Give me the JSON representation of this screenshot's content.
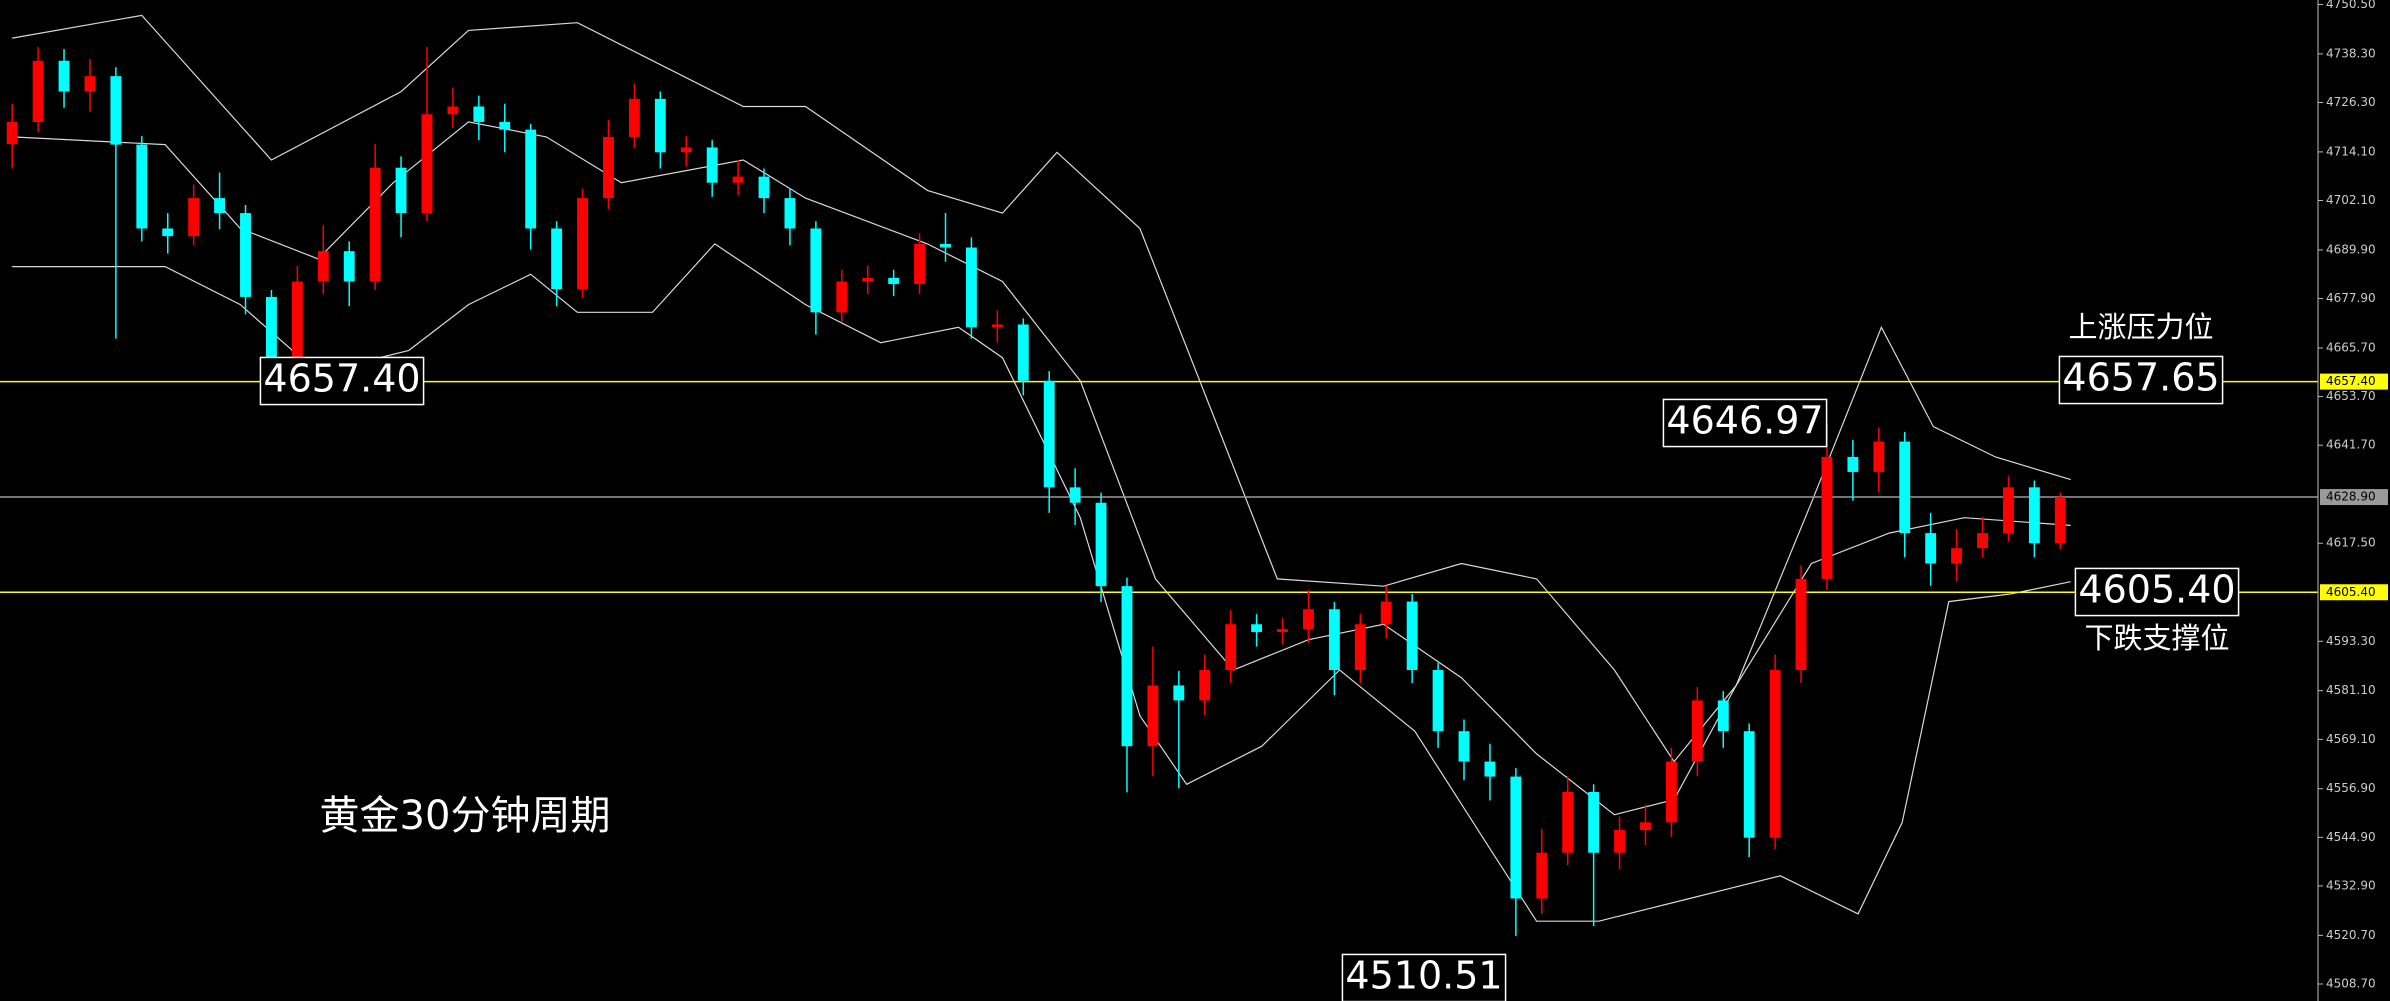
{
  "chart_data": {
    "type": "candlestick",
    "up_color": "#ff0000",
    "down_color": "#00ffff",
    "open": [
      4716.0,
      4721.5,
      4736.6,
      4729.0,
      4732.8,
      4715.9,
      4695.2,
      4693.3,
      4702.7,
      4699.0,
      4678.3,
      4663.3,
      4682.1,
      4689.6,
      4682.1,
      4710.2,
      4699.0,
      4723.4,
      4725.3,
      4721.5,
      4719.6,
      4695.2,
      4680.2,
      4702.7,
      4717.8,
      4727.2,
      4714.0,
      4715.2,
      4706.5,
      4708.0,
      4702.7,
      4695.2,
      4674.5,
      4682.1,
      4683.0,
      4681.5,
      4691.4,
      4690.5,
      4670.8,
      4671.5,
      4657.6,
      4631.3,
      4627.5,
      4606.9,
      4567.4,
      4582.4,
      4578.7,
      4586.2,
      4597.5,
      4595.6,
      4596.3,
      4601.2,
      4586.2,
      4597.5,
      4603.1,
      4586.2,
      4571.1,
      4563.6,
      4559.9,
      4529.8,
      4541.1,
      4556.1,
      4541.1,
      4546.7,
      4548.6,
      4563.6,
      4578.7,
      4571.1,
      4544.8,
      4586.2,
      4608.7,
      4638.8,
      4635.1,
      4642.6,
      4620.0,
      4612.5,
      4616.3,
      4620.0,
      4631.3,
      4617.5
    ],
    "high": [
      4726.0,
      4740.0,
      4739.5,
      4737.0,
      4735.0,
      4718.0,
      4699.0,
      4706.0,
      4709.0,
      4701.0,
      4680.0,
      4686.0,
      4696.0,
      4692.0,
      4716.0,
      4713.0,
      4740.0,
      4730.0,
      4728.0,
      4726.0,
      4721.0,
      4697.0,
      4705.0,
      4722.0,
      4731.0,
      4729.0,
      4718.0,
      4717.0,
      4712.0,
      4710.0,
      4705.0,
      4697.0,
      4685.0,
      4686.0,
      4685.0,
      4694.0,
      4699.0,
      4693.0,
      4675.0,
      4673.0,
      4660.0,
      4636.0,
      4630.0,
      4609.0,
      4592.0,
      4586.0,
      4590.0,
      4601.0,
      4600.0,
      4599.0,
      4606.0,
      4603.0,
      4600.0,
      4607.0,
      4605.0,
      4588.0,
      4574.0,
      4568.0,
      4562.0,
      4547.0,
      4560.0,
      4558.0,
      4550.0,
      4553.0,
      4567.0,
      4582.0,
      4581.0,
      4573.0,
      4590.0,
      4612.0,
      4646.97,
      4643.0,
      4646.0,
      4645.0,
      4625.0,
      4621.0,
      4624.0,
      4634.0,
      4633.0,
      4630.0
    ],
    "low": [
      4710.0,
      4719.0,
      4725.0,
      4724.0,
      4668.0,
      4692.0,
      4689.0,
      4691.0,
      4695.0,
      4674.0,
      4657.4,
      4661.0,
      4679.0,
      4676.0,
      4680.0,
      4693.0,
      4697.0,
      4720.0,
      4717.0,
      4714.0,
      4690.0,
      4676.0,
      4678.0,
      4700.0,
      4715.0,
      4710.0,
      4710.5,
      4703.0,
      4703.5,
      4699.0,
      4691.0,
      4669.0,
      4672.0,
      4679.0,
      4678.5,
      4679.0,
      4687.0,
      4668.0,
      4667.0,
      4654.0,
      4625.0,
      4622.0,
      4603.0,
      4556.0,
      4560.0,
      4557.0,
      4575.0,
      4583.0,
      4592.0,
      4592.5,
      4593.0,
      4580.0,
      4583.0,
      4594.0,
      4583.0,
      4567.0,
      4559.0,
      4554.0,
      4520.5,
      4526.0,
      4538.0,
      4523.0,
      4537.0,
      4543.0,
      4545.0,
      4560.0,
      4567.0,
      4540.0,
      4542.0,
      4583.0,
      4606.0,
      4628.0,
      4630.0,
      4614.0,
      4607.0,
      4608.0,
      4614.0,
      4618.0,
      4614.0,
      4616.0
    ],
    "close": [
      4721.5,
      4736.6,
      4729.0,
      4732.8,
      4715.9,
      4695.2,
      4693.3,
      4702.7,
      4699.0,
      4678.3,
      4663.3,
      4682.1,
      4689.6,
      4682.1,
      4710.2,
      4699.0,
      4723.4,
      4725.3,
      4721.5,
      4719.6,
      4695.2,
      4680.2,
      4702.7,
      4717.8,
      4727.2,
      4714.0,
      4715.2,
      4706.5,
      4708.0,
      4702.7,
      4695.2,
      4674.5,
      4682.1,
      4683.0,
      4681.5,
      4691.4,
      4690.5,
      4670.8,
      4671.5,
      4657.6,
      4631.3,
      4627.5,
      4606.9,
      4567.4,
      4582.4,
      4578.7,
      4586.2,
      4597.5,
      4595.6,
      4596.3,
      4601.2,
      4586.2,
      4597.5,
      4603.1,
      4586.2,
      4571.1,
      4563.6,
      4559.9,
      4529.8,
      4541.1,
      4556.1,
      4541.1,
      4546.7,
      4548.6,
      4563.6,
      4578.7,
      4571.1,
      4544.8,
      4586.2,
      4608.7,
      4638.8,
      4635.1,
      4642.6,
      4620.0,
      4612.5,
      4616.3,
      4620.0,
      4631.3,
      4617.5,
      4628.9
    ],
    "bands": [
      {
        "color": "#d8d8d8",
        "x": [
          0,
          5,
          10,
          15,
          17.6,
          21.8,
          28.2,
          30.6,
          35.3,
          38.2,
          40.3,
          43.5,
          46.5,
          48.8,
          52.9,
          55.9,
          58.8,
          61.8,
          64.1,
          66.5,
          69.4,
          72.1,
          74.1,
          76.5,
          79.4
        ],
        "values": [
          4742.2,
          4747.8,
          4712.1,
          4729.0,
          4744.1,
          4746.0,
          4725.3,
          4725.3,
          4704.6,
          4699.0,
          4714.0,
          4695.2,
          4646.3,
          4608.7,
          4606.9,
          4612.5,
          4608.7,
          4586.2,
          4563.6,
          4582.4,
          4627.5,
          4670.8,
          4646.3,
          4638.8,
          4633.2
        ]
      },
      {
        "color": "#d8d8d8",
        "x": [
          0,
          5.9,
          8.8,
          11.8,
          14.7,
          17.6,
          20.6,
          23.5,
          28.2,
          30.6,
          35.3,
          38.2,
          41.2,
          44.1,
          47.1,
          50,
          52.9,
          55.9,
          58.8,
          61.8,
          64.1,
          66.5,
          69.4,
          72.4,
          75.3,
          79.4
        ],
        "values": [
          4717.8,
          4715.9,
          4695.2,
          4687.7,
          4706.5,
          4721.5,
          4717.8,
          4706.5,
          4712.1,
          4702.7,
          4691.4,
          4682.1,
          4657.6,
          4608.7,
          4586.2,
          4593.7,
          4597.5,
          4584.3,
          4565.5,
          4550.5,
          4554.2,
          4582.4,
          4612.5,
          4620.0,
          4623.8,
          4621.9
        ]
      },
      {
        "color": "#d8d8d8",
        "x": [
          0,
          5.9,
          8.8,
          11.8,
          15.3,
          17.6,
          20,
          21.8,
          24.7,
          27.1,
          30.6,
          33.5,
          36.5,
          38.2,
          41.2,
          43.5,
          45.3,
          48.2,
          51.2,
          54.1,
          57.1,
          58.8,
          61.2,
          64.7,
          68.2,
          71.2,
          72.9,
          74.7,
          77.1,
          79.4
        ],
        "values": [
          4685.8,
          4685.8,
          4676.4,
          4659.5,
          4665.1,
          4676.4,
          4683.9,
          4674.5,
          4674.5,
          4691.4,
          4676.4,
          4667.0,
          4670.8,
          4663.3,
          4623.8,
          4574.9,
          4558.0,
          4567.4,
          4586.2,
          4571.1,
          4541.1,
          4524.2,
          4524.2,
          4529.8,
          4535.4,
          4526.0,
          4548.6,
          4603.1,
          4605.0,
          4608.0
        ]
      }
    ],
    "xlim": [
      -0.47,
      88.94
    ],
    "ylim": [
      4504.5,
      4751.6
    ],
    "yticks": [
      {
        "value": 4750.5,
        "label": "4750.50"
      },
      {
        "value": 4738.3,
        "label": "4738.30"
      },
      {
        "value": 4726.3,
        "label": "4726.30"
      },
      {
        "value": 4714.1,
        "label": "4714.10"
      },
      {
        "value": 4702.1,
        "label": "4702.10"
      },
      {
        "value": 4689.9,
        "label": "4689.90"
      },
      {
        "value": 4677.9,
        "label": "4677.90"
      },
      {
        "value": 4665.7,
        "label": "4665.70"
      },
      {
        "value": 4653.7,
        "label": "4653.70"
      },
      {
        "value": 4641.7,
        "label": "4641.70"
      },
      {
        "value": 4617.5,
        "label": "4617.50"
      },
      {
        "value": 4593.3,
        "label": "4593.30"
      },
      {
        "value": 4581.1,
        "label": "4581.10"
      },
      {
        "value": 4569.1,
        "label": "4569.10"
      },
      {
        "value": 4556.9,
        "label": "4556.90"
      },
      {
        "value": 4544.9,
        "label": "4544.90"
      },
      {
        "value": 4532.9,
        "label": "4532.90"
      },
      {
        "value": 4520.7,
        "label": "4520.70"
      },
      {
        "value": 4508.7,
        "label": "4508.70"
      }
    ],
    "hlines": [
      {
        "value": 4657.4,
        "label": "4657.40",
        "color": "#ffff00"
      },
      {
        "value": 4628.9,
        "label": "4628.90",
        "color": "#9a9a9a"
      },
      {
        "value": 4605.4,
        "label": "4605.40",
        "color": "#ffff00"
      }
    ],
    "annotations": [
      {
        "text": "4657.40",
        "boxed": true
      },
      {
        "text": "上涨压力位",
        "boxed": false
      },
      {
        "text": "4657.65",
        "boxed": true
      },
      {
        "text": "4646.97",
        "boxed": true
      },
      {
        "text": "4605.40",
        "boxed": true
      },
      {
        "text": "下跌支撑位",
        "boxed": false
      },
      {
        "text": "4510.51",
        "boxed": true
      },
      {
        "text": "黄金30分钟周期",
        "boxed": false
      }
    ]
  }
}
